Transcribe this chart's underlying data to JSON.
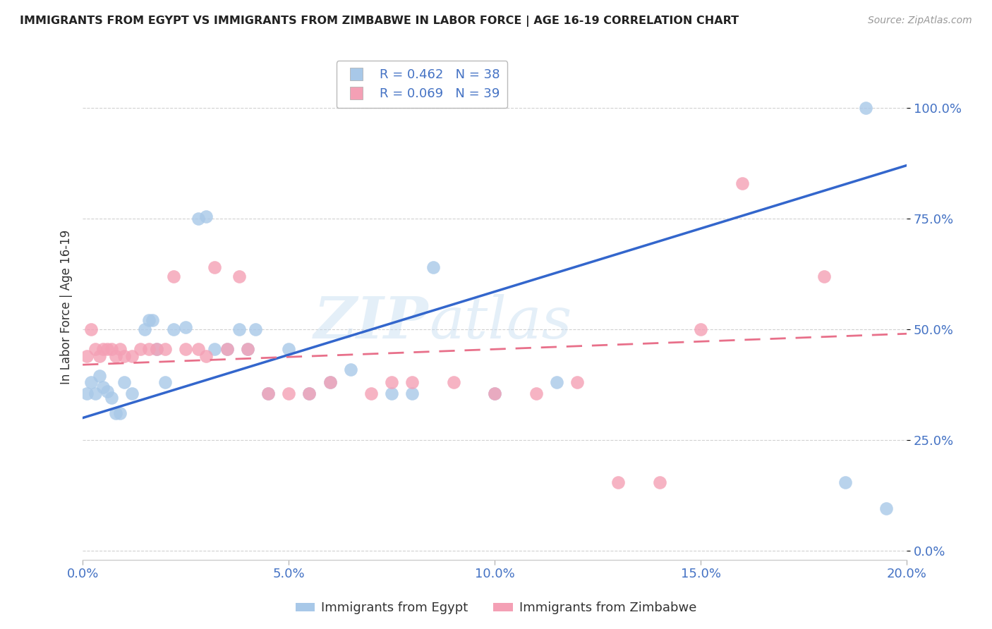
{
  "title": "IMMIGRANTS FROM EGYPT VS IMMIGRANTS FROM ZIMBABWE IN LABOR FORCE | AGE 16-19 CORRELATION CHART",
  "source": "Source: ZipAtlas.com",
  "xlabel": "",
  "ylabel": "In Labor Force | Age 16-19",
  "legend_label_egypt": "Immigrants from Egypt",
  "legend_label_zimbabwe": "Immigrants from Zimbabwe",
  "egypt_R": 0.462,
  "egypt_N": 38,
  "zimbabwe_R": 0.069,
  "zimbabwe_N": 39,
  "color_egypt": "#A8C8E8",
  "color_zimbabwe": "#F4A0B5",
  "color_egypt_line": "#3366CC",
  "color_zimbabwe_line": "#E8708A",
  "color_axis_labels": "#4472C4",
  "watermark_text": "ZIPatlas",
  "xlim": [
    0.0,
    0.2
  ],
  "ylim": [
    -0.02,
    1.12
  ],
  "egypt_x": [
    0.001,
    0.002,
    0.003,
    0.004,
    0.005,
    0.006,
    0.007,
    0.008,
    0.009,
    0.01,
    0.012,
    0.015,
    0.016,
    0.017,
    0.018,
    0.02,
    0.022,
    0.025,
    0.028,
    0.03,
    0.032,
    0.035,
    0.038,
    0.04,
    0.042,
    0.045,
    0.05,
    0.055,
    0.06,
    0.065,
    0.075,
    0.08,
    0.085,
    0.1,
    0.115,
    0.185,
    0.19,
    0.195
  ],
  "egypt_y": [
    0.355,
    0.38,
    0.355,
    0.395,
    0.37,
    0.36,
    0.345,
    0.31,
    0.31,
    0.38,
    0.355,
    0.5,
    0.52,
    0.52,
    0.455,
    0.38,
    0.5,
    0.505,
    0.75,
    0.755,
    0.455,
    0.455,
    0.5,
    0.455,
    0.5,
    0.355,
    0.455,
    0.355,
    0.38,
    0.41,
    0.355,
    0.355,
    0.64,
    0.355,
    0.38,
    0.155,
    1.0,
    0.095
  ],
  "zimbabwe_x": [
    0.001,
    0.002,
    0.003,
    0.004,
    0.005,
    0.006,
    0.007,
    0.008,
    0.009,
    0.01,
    0.012,
    0.014,
    0.016,
    0.018,
    0.02,
    0.022,
    0.025,
    0.028,
    0.03,
    0.032,
    0.035,
    0.038,
    0.04,
    0.045,
    0.05,
    0.055,
    0.06,
    0.07,
    0.075,
    0.08,
    0.09,
    0.1,
    0.11,
    0.12,
    0.13,
    0.14,
    0.15,
    0.16,
    0.18
  ],
  "zimbabwe_y": [
    0.44,
    0.5,
    0.455,
    0.44,
    0.455,
    0.455,
    0.455,
    0.44,
    0.455,
    0.44,
    0.44,
    0.455,
    0.455,
    0.455,
    0.455,
    0.62,
    0.455,
    0.455,
    0.44,
    0.64,
    0.455,
    0.62,
    0.455,
    0.355,
    0.355,
    0.355,
    0.38,
    0.355,
    0.38,
    0.38,
    0.38,
    0.355,
    0.355,
    0.38,
    0.155,
    0.155,
    0.5,
    0.83,
    0.62
  ],
  "ytick_positions": [
    0.0,
    0.25,
    0.5,
    0.75,
    1.0
  ],
  "ytick_labels": [
    "0.0%",
    "25.0%",
    "50.0%",
    "75.0%",
    "100.0%"
  ],
  "xtick_positions": [
    0.0,
    0.05,
    0.1,
    0.15,
    0.2
  ],
  "xtick_labels": [
    "0.0%",
    "5.0%",
    "10.0%",
    "15.0%",
    "20.0%"
  ],
  "egypt_line_x0": 0.0,
  "egypt_line_y0": 0.3,
  "egypt_line_x1": 0.2,
  "egypt_line_y1": 0.87,
  "zimbabwe_line_x0": 0.0,
  "zimbabwe_line_y0": 0.42,
  "zimbabwe_line_x1": 0.2,
  "zimbabwe_line_y1": 0.49
}
